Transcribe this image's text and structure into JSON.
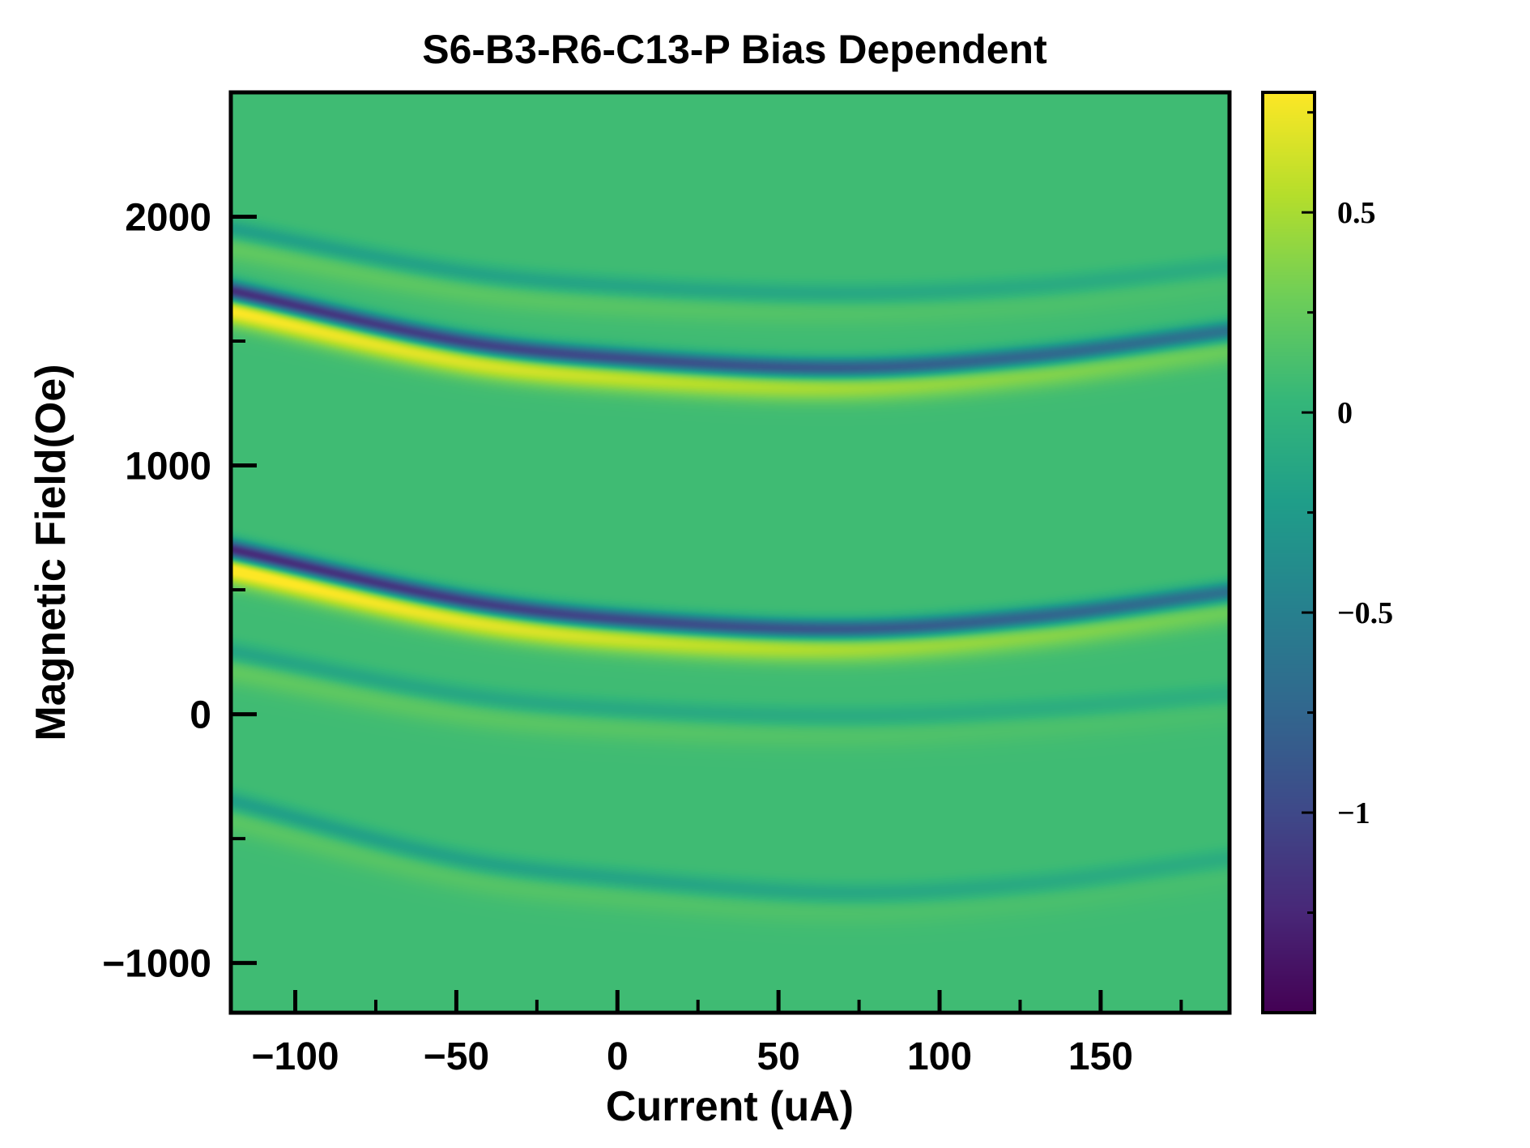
{
  "chart_data": {
    "type": "heatmap",
    "title": "S6-B3-R6-C13-P Bias Dependent",
    "xlabel": "Current (uA)",
    "ylabel": "Magnetic Field(Oe)",
    "xlim": [
      -120,
      190
    ],
    "ylim": [
      -1200,
      2500
    ],
    "x_major_ticks": [
      -100,
      -50,
      0,
      50,
      100,
      150
    ],
    "x_minor_ticks": [
      -75,
      -25,
      25,
      75,
      125,
      175
    ],
    "x_tick_labels": [
      "−100",
      "−50",
      "0",
      "50",
      "100",
      "150"
    ],
    "y_major_ticks": [
      -1000,
      0,
      1000,
      2000
    ],
    "y_minor_ticks": [
      -500,
      500,
      1500
    ],
    "y_tick_labels": [
      "−1000",
      "0",
      "1000",
      "2000"
    ],
    "colormap": "viridis",
    "colorbar": {
      "vmin": -1.5,
      "vmax": 0.8,
      "major_ticks": [
        -1,
        -0.5,
        0,
        0.5
      ],
      "minor_ticks": [
        -1.25,
        -0.75,
        -0.25,
        0.25,
        0.75
      ],
      "tick_labels": [
        "−1",
        "−0.5",
        "0",
        "0.5"
      ]
    },
    "background_value": 0.08,
    "features": [
      {
        "center_field_at_x": [
          [
            -120,
            1700
          ],
          [
            -50,
            1500
          ],
          [
            0,
            1430
          ],
          [
            70,
            1390
          ],
          [
            130,
            1440
          ],
          [
            190,
            1540
          ]
        ],
        "dip": -1.4,
        "peak": 0.75
      },
      {
        "center_field_at_x": [
          [
            -120,
            660
          ],
          [
            -50,
            460
          ],
          [
            0,
            380
          ],
          [
            70,
            340
          ],
          [
            130,
            390
          ],
          [
            190,
            490
          ]
        ],
        "dip": -1.45,
        "peak": 0.8
      },
      {
        "center_field_at_x": [
          [
            -120,
            1950
          ],
          [
            -50,
            1780
          ],
          [
            0,
            1720
          ],
          [
            70,
            1690
          ],
          [
            130,
            1720
          ],
          [
            190,
            1800
          ]
        ],
        "dip": -0.3,
        "peak": 0.15
      },
      {
        "center_field_at_x": [
          [
            -120,
            250
          ],
          [
            -50,
            80
          ],
          [
            0,
            20
          ],
          [
            70,
            -10
          ],
          [
            130,
            20
          ],
          [
            190,
            80
          ]
        ],
        "dip": -0.25,
        "peak": 0.15
      },
      {
        "center_field_at_x": [
          [
            -120,
            -350
          ],
          [
            -50,
            -580
          ],
          [
            0,
            -660
          ],
          [
            70,
            -720
          ],
          [
            130,
            -680
          ],
          [
            190,
            -580
          ]
        ],
        "dip": -0.3,
        "peak": 0.12
      }
    ]
  }
}
